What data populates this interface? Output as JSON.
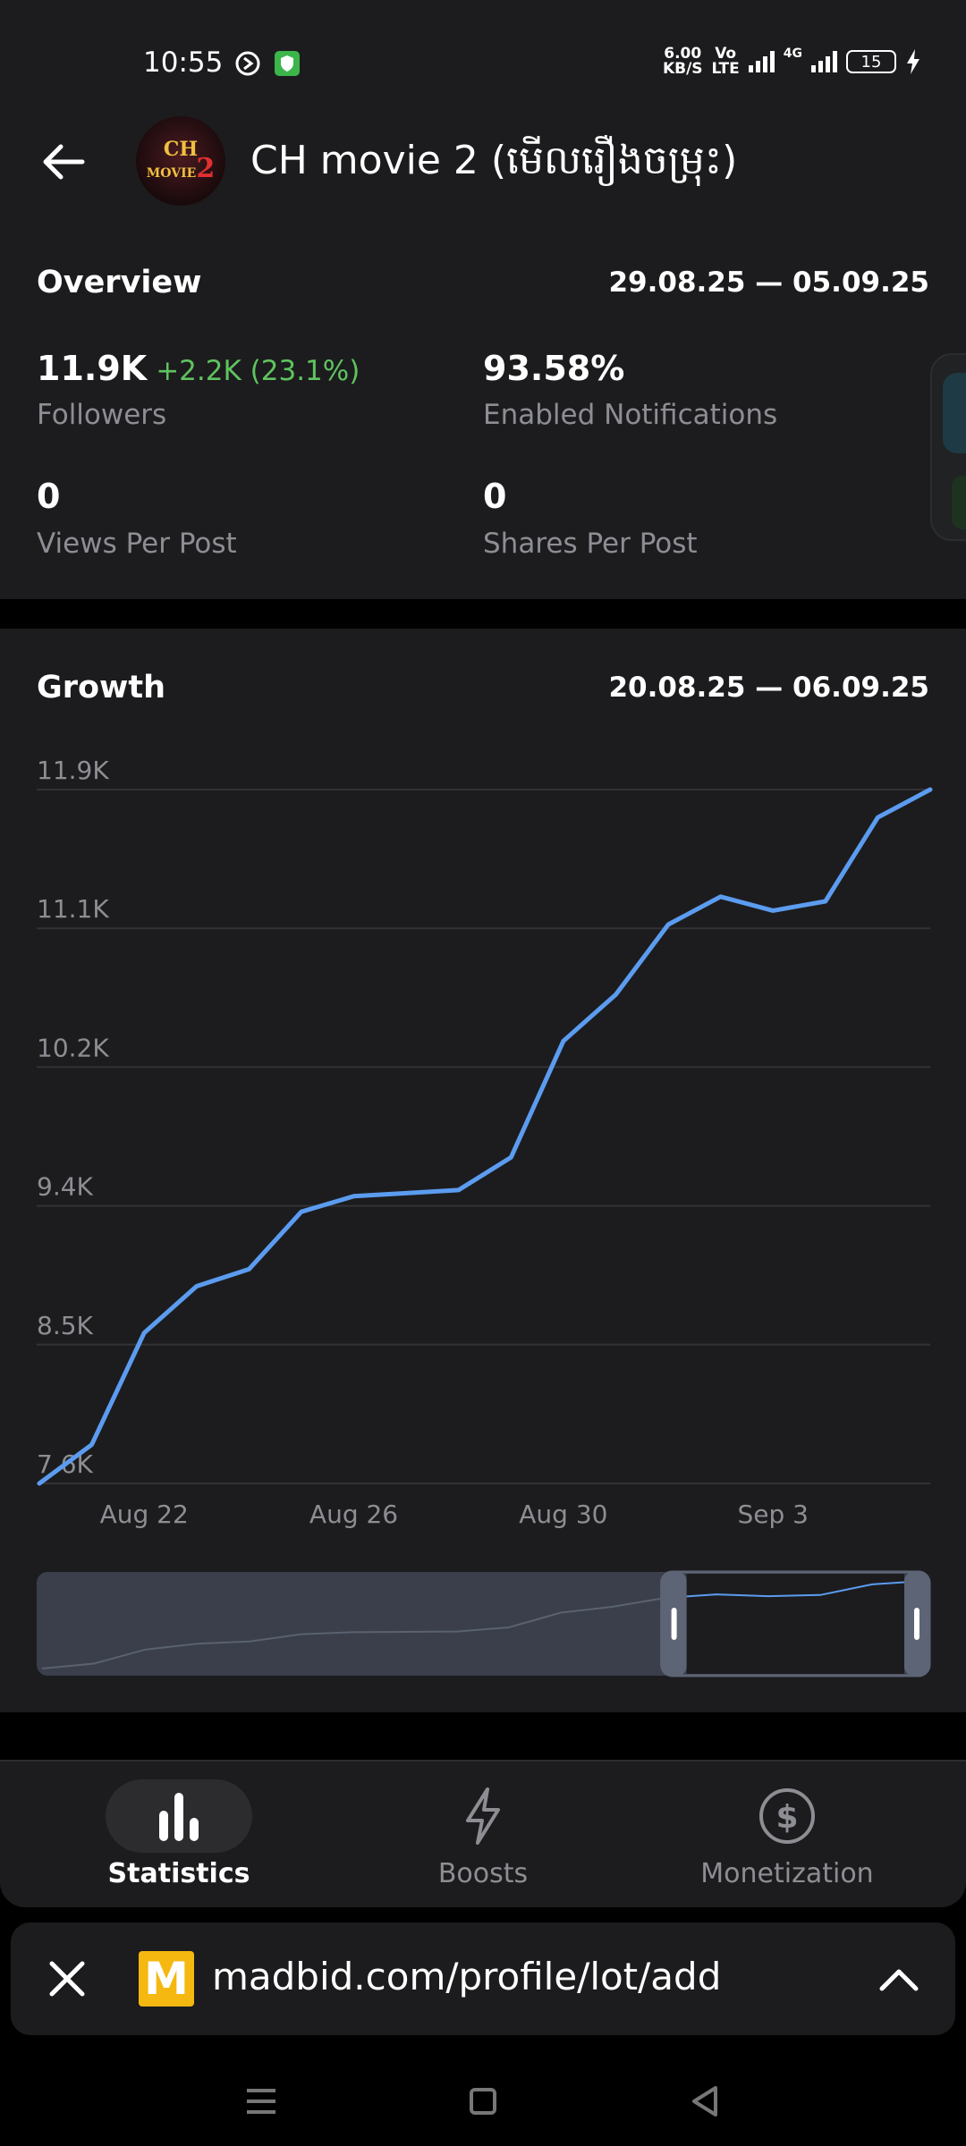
{
  "status_bar": {
    "time": "10:55",
    "speed_top": "6.00",
    "speed_bottom": "KB/S",
    "volte_top": "Vo",
    "volte_bottom": "LTE",
    "network": "4G",
    "battery": "15"
  },
  "header": {
    "title": "CH movie 2 (មើលរឿងចម្រុះ)",
    "avatar_text_top": "CH",
    "avatar_text_bottom": "MOVIE",
    "avatar_number": "2"
  },
  "overview": {
    "title": "Overview",
    "range": "29.08.25 — 05.09.25",
    "metrics": [
      {
        "value": "11.9K",
        "delta": "+2.2K (23.1%)",
        "label": "Followers"
      },
      {
        "value": "93.58%",
        "delta": "",
        "label": "Enabled Notifications"
      },
      {
        "value": "0",
        "delta": "",
        "label": "Views Per Post"
      },
      {
        "value": "0",
        "delta": "",
        "label": "Shares Per Post"
      }
    ]
  },
  "growth": {
    "title": "Growth",
    "range": "20.08.25 — 06.09.25"
  },
  "chart_data": {
    "type": "line",
    "x": [
      "Aug 20",
      "Aug 21",
      "Aug 22",
      "Aug 23",
      "Aug 24",
      "Aug 25",
      "Aug 26",
      "Aug 27",
      "Aug 28",
      "Aug 29",
      "Aug 30",
      "Aug 31",
      "Sep 1",
      "Sep 2",
      "Sep 3",
      "Sep 4",
      "Sep 5",
      "Sep 6"
    ],
    "series": [
      {
        "values": [
          7600,
          7850,
          8570,
          8870,
          8980,
          9350,
          9450,
          9470,
          9490,
          9700,
          10450,
          10750,
          11200,
          11380,
          11290,
          11350,
          11890,
          12070
        ],
        "color": "#5b9cf0"
      }
    ],
    "y_ticks": [
      "7.6K",
      "8.5K",
      "9.4K",
      "10.2K",
      "11.1K",
      "11.9K"
    ],
    "x_ticks": [
      "Aug 22",
      "Aug 26",
      "Aug 30",
      "Sep 3"
    ],
    "ylim": [
      7600,
      12070
    ],
    "grid": true,
    "navigator_start_fraction": 0.7
  },
  "bottom_nav": [
    {
      "label": "Statistics",
      "icon": "bar-chart-icon",
      "active": true
    },
    {
      "label": "Boosts",
      "icon": "lightning-icon",
      "active": false
    },
    {
      "label": "Monetization",
      "icon": "dollar-icon",
      "active": false
    }
  ],
  "browser": {
    "url": "madbid.com/profile/lot/add",
    "logo_letter": "M"
  },
  "colors": {
    "accent": "#5b9cf0",
    "positive": "#5fc35f",
    "card": "#1c1c1e",
    "muted": "#8d8e93"
  }
}
